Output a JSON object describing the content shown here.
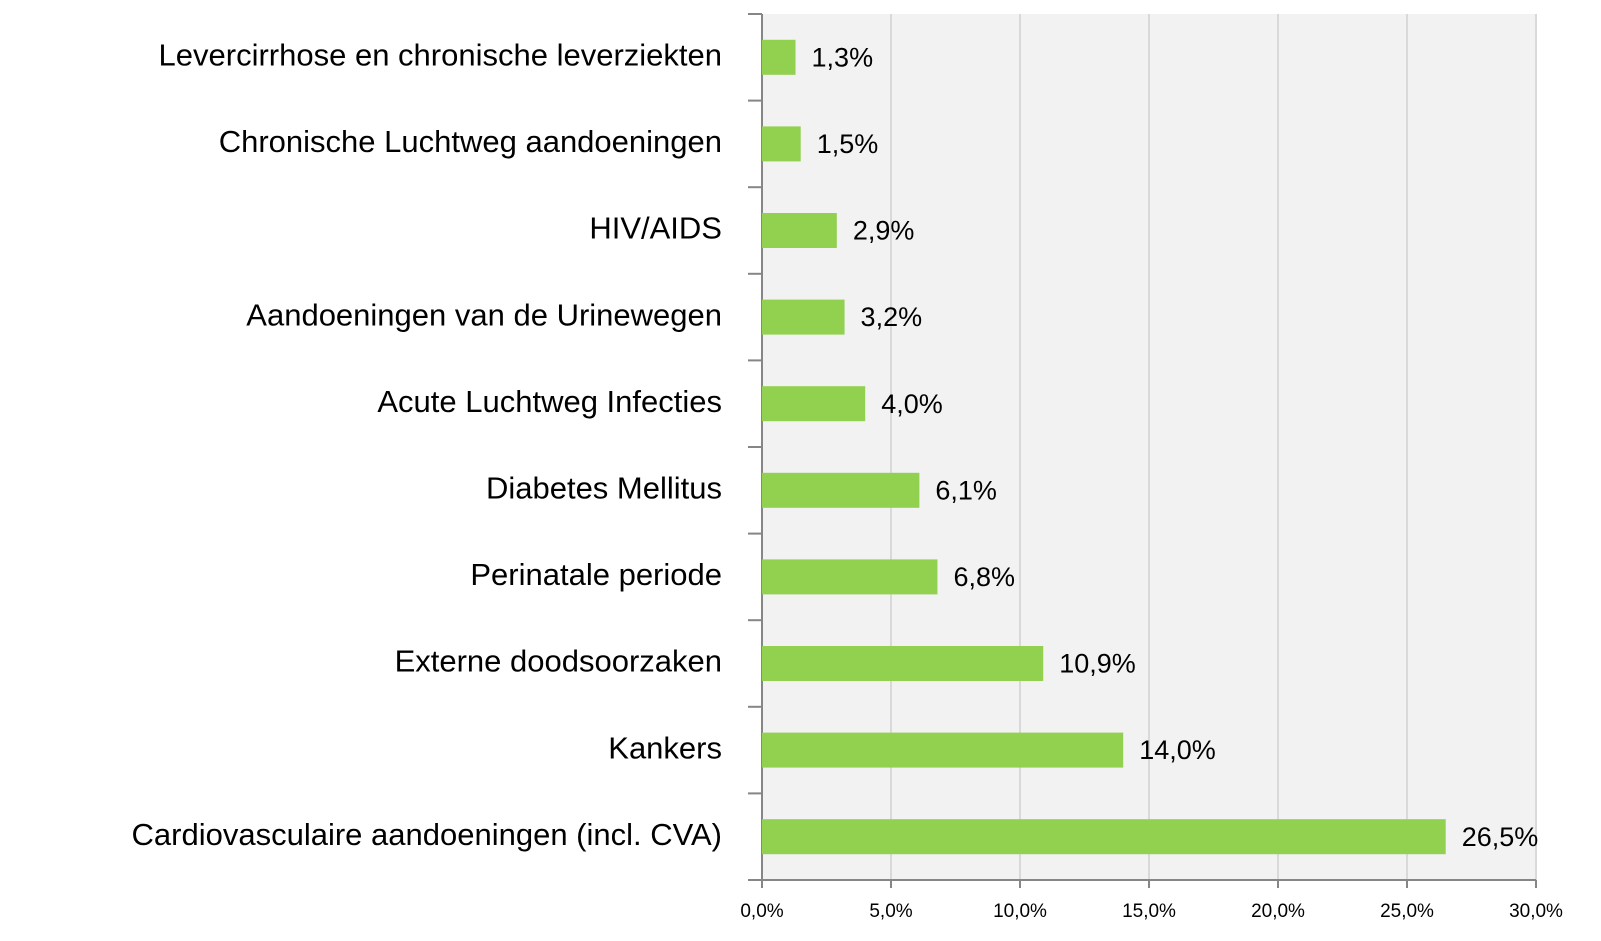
{
  "chart_data": {
    "type": "bar",
    "orientation": "horizontal",
    "categories": [
      "Levercirrhose en chronische leverziekten",
      "Chronische Luchtweg aandoeningen",
      "HIV/AIDS",
      "Aandoeningen van de Urinewegen",
      "Acute Luchtweg Infecties",
      "Diabetes Mellitus",
      "Perinatale periode",
      "Externe doodsoorzaken",
      "Kankers",
      "Cardiovasculaire aandoeningen (incl. CVA)"
    ],
    "values": [
      1.3,
      1.5,
      2.9,
      3.2,
      4.0,
      6.1,
      6.8,
      10.9,
      14.0,
      26.5
    ],
    "value_labels": [
      "1,3%",
      "1,5%",
      "2,9%",
      "3,2%",
      "4,0%",
      "6,1%",
      "6,8%",
      "10,9%",
      "14,0%",
      "26,5%"
    ],
    "color": "#92d050",
    "xlim": [
      0,
      30
    ],
    "xticks": [
      {
        "value": 0,
        "label": "0,0%"
      },
      {
        "value": 5,
        "label": "5,0%"
      },
      {
        "value": 10,
        "label": "10,0%"
      },
      {
        "value": 15,
        "label": "15,0%"
      },
      {
        "value": 20,
        "label": "20,0%"
      },
      {
        "value": 25,
        "label": "25,0%"
      },
      {
        "value": 30,
        "label": "30,0%"
      }
    ],
    "grid": true
  }
}
